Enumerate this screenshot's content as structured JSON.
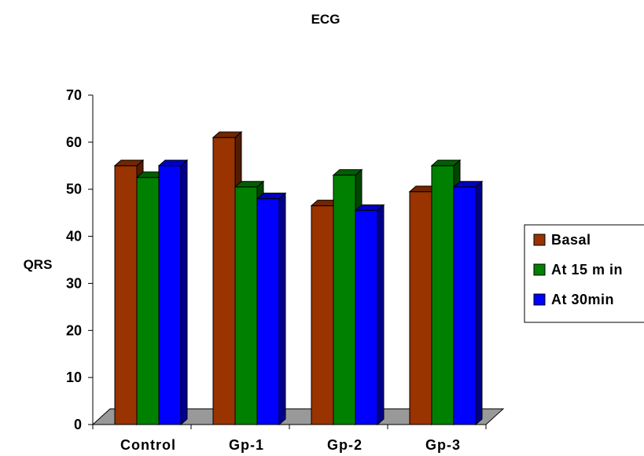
{
  "chart_data": {
    "type": "bar",
    "title": "ECG",
    "xlabel": "",
    "ylabel": "QRS",
    "categories": [
      "Control",
      "Gp-1",
      "Gp-2",
      "Gp-3"
    ],
    "series": [
      {
        "name": "Basal",
        "values": [
          55,
          61,
          46.5,
          49.5
        ],
        "color": "#993300"
      },
      {
        "name": "At 15 m in",
        "values": [
          52.5,
          50.5,
          53,
          55
        ],
        "color": "#008000"
      },
      {
        "name": "At 30min",
        "values": [
          55,
          48,
          45.5,
          50.5
        ],
        "color": "#0000FF"
      }
    ],
    "ylim": [
      0,
      70
    ],
    "yticks": [
      "0",
      "10",
      "20",
      "30",
      "40",
      "50",
      "60",
      "70"
    ],
    "grid": false,
    "legend_position": "right",
    "three_d": true,
    "floor_color": "#999999"
  }
}
